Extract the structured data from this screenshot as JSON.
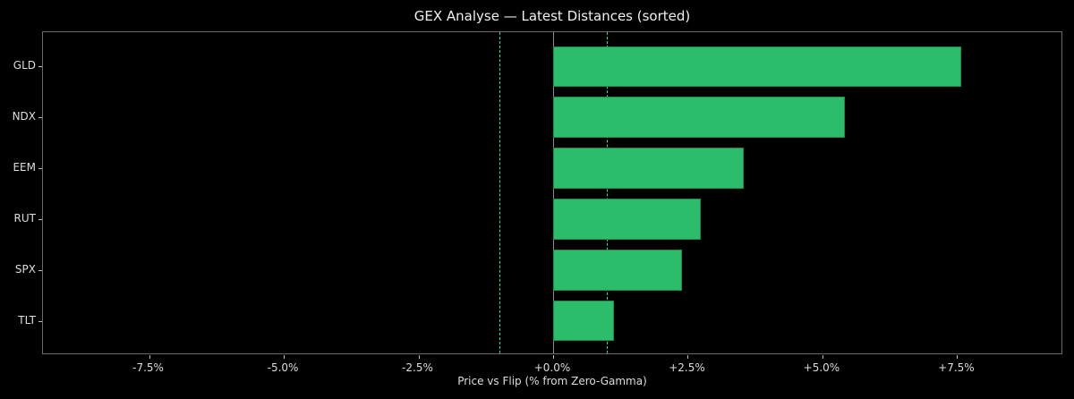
{
  "chart_data": {
    "type": "bar",
    "orientation": "horizontal",
    "title": "GEX Analyse — Latest Distances (sorted)",
    "xlabel": "Price vs Flip (% from Zero-Gamma)",
    "ylabel": "",
    "categories": [
      "GLD",
      "NDX",
      "EEM",
      "RUT",
      "SPX",
      "TLT"
    ],
    "values": [
      7.57,
      5.41,
      3.54,
      2.74,
      2.39,
      1.13
    ],
    "xlim": [
      -9.47,
      9.47
    ],
    "xticks": [
      -7.5,
      -5.0,
      -2.5,
      0.0,
      2.5,
      5.0,
      7.5
    ],
    "xtick_labels": [
      "-7.5%",
      "-5.0%",
      "-2.5%",
      "+0.0%",
      "+2.5%",
      "+5.0%",
      "+7.5%"
    ],
    "reference_lines": [
      {
        "x": 0.0,
        "style": "solid",
        "color": "#8a8a8a"
      },
      {
        "x": -1.0,
        "style": "dashed",
        "color": "#2fe08a"
      },
      {
        "x": 1.0,
        "style": "dashed",
        "color": "#2fe08a"
      }
    ],
    "bar_color": "#2bbd6a",
    "background": "#000000",
    "grid": false,
    "legend": null
  }
}
